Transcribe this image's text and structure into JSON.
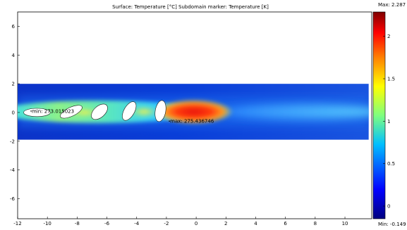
{
  "plot": {
    "title": "Surface: Temperature [°C]   Subdomain marker: Temperature [K]",
    "x_ticks": [
      "-12",
      "-10",
      "-8",
      "-6",
      "-4",
      "-2",
      "0",
      "2",
      "4",
      "6",
      "8",
      "10"
    ],
    "y_ticks": [
      "6",
      "4",
      "2",
      "0",
      "-2",
      "-4",
      "-6"
    ],
    "xlim": [
      -12,
      11.8
    ],
    "ylim": [
      -7.4,
      7.0
    ],
    "domain_x": [
      -12,
      11.6
    ],
    "domain_y": [
      -1.9,
      2.0
    ],
    "min_marker": {
      "text": "min: 273.015023",
      "x": -11.1,
      "y": 0.1
    },
    "max_marker": {
      "text": "max: 275.436746",
      "x": -1.8,
      "y": -0.6
    },
    "obstacles": [
      {
        "cx": -10.7,
        "cy": 0.0,
        "rx": 0.9,
        "ry": 0.28,
        "angle": 0
      },
      {
        "cx": -8.4,
        "cy": 0.05,
        "rx": 0.8,
        "ry": 0.3,
        "angle": -25
      },
      {
        "cx": -6.5,
        "cy": 0.05,
        "rx": 0.65,
        "ry": 0.38,
        "angle": -42
      },
      {
        "cx": -4.5,
        "cy": 0.1,
        "rx": 0.7,
        "ry": 0.35,
        "angle": -60
      },
      {
        "cx": -2.4,
        "cy": 0.1,
        "rx": 0.72,
        "ry": 0.35,
        "angle": -80
      }
    ]
  },
  "colorbar": {
    "max_label": "Max: 2.287",
    "min_label": "Min: -0.149",
    "ticks": [
      "2",
      "1.5",
      "1",
      "0.5",
      "0"
    ],
    "tick_values": [
      2,
      1.5,
      1,
      0.5,
      0
    ],
    "range": [
      -0.149,
      2.287
    ],
    "colors": [
      "#00007f",
      "#0000ff",
      "#00bfff",
      "#7fff7f",
      "#ffff00",
      "#ff8000",
      "#ff0000",
      "#7f0000"
    ]
  }
}
